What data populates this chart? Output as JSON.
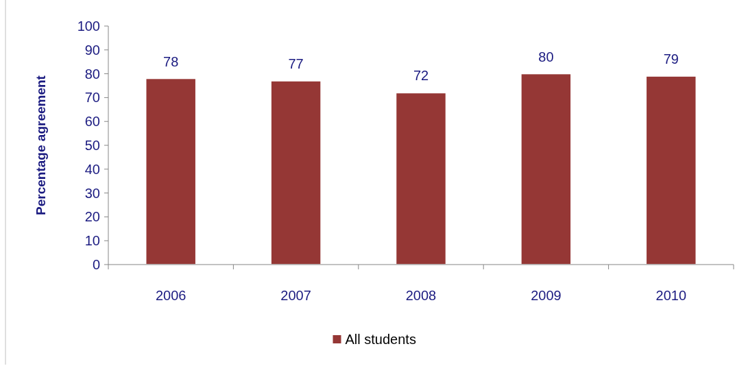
{
  "chart_data": {
    "type": "bar",
    "ylabel": "Percentage agreement",
    "categories": [
      "2006",
      "2007",
      "2008",
      "2009",
      "2010"
    ],
    "series": [
      {
        "name": "All students",
        "color": "#953735",
        "values": [
          78,
          77,
          72,
          80,
          79
        ]
      }
    ],
    "ylim": [
      0,
      100
    ],
    "yticks": [
      0,
      10,
      20,
      30,
      40,
      50,
      60,
      70,
      80,
      90,
      100
    ],
    "data_labels": true,
    "legend": "bottom",
    "grid": false
  }
}
